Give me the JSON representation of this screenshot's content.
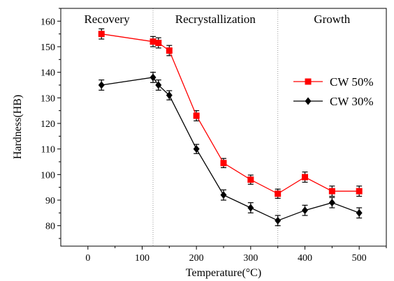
{
  "chart_data": {
    "type": "line",
    "title": "",
    "xlabel": "Temperature(°C)",
    "ylabel": "Hardness(HB)",
    "xlim": [
      -50,
      550
    ],
    "ylim": [
      72,
      165
    ],
    "x_ticks": [
      0,
      100,
      200,
      300,
      400,
      500
    ],
    "y_ticks": [
      80,
      90,
      100,
      110,
      120,
      130,
      140,
      150,
      160
    ],
    "grid": false,
    "legend_position": "right",
    "regions": [
      {
        "label": "Recovery",
        "start": -50,
        "end": 120
      },
      {
        "label": "Recrystallization",
        "start": 120,
        "end": 350
      },
      {
        "label": "Growth",
        "start": 350,
        "end": 550
      }
    ],
    "series": [
      {
        "name": "CW 50%",
        "color": "#ff0000",
        "marker": "square",
        "x": [
          25,
          120,
          130,
          150,
          200,
          250,
          300,
          350,
          400,
          450,
          500
        ],
        "y": [
          155,
          152,
          151.5,
          148.5,
          123,
          104.5,
          98,
          92.5,
          99,
          93.5,
          93.5
        ],
        "err": [
          2,
          2,
          2,
          2,
          2,
          1.8,
          1.8,
          1.8,
          2,
          2,
          2
        ]
      },
      {
        "name": "CW 30%",
        "color": "#000000",
        "marker": "diamond",
        "x": [
          25,
          120,
          130,
          150,
          200,
          250,
          300,
          350,
          400,
          450,
          500
        ],
        "y": [
          135,
          138,
          135,
          131,
          110,
          92,
          87,
          82,
          86,
          89,
          85
        ],
        "err": [
          2,
          2,
          2,
          1.8,
          1.8,
          2,
          2,
          2,
          2,
          2,
          2
        ]
      }
    ]
  }
}
